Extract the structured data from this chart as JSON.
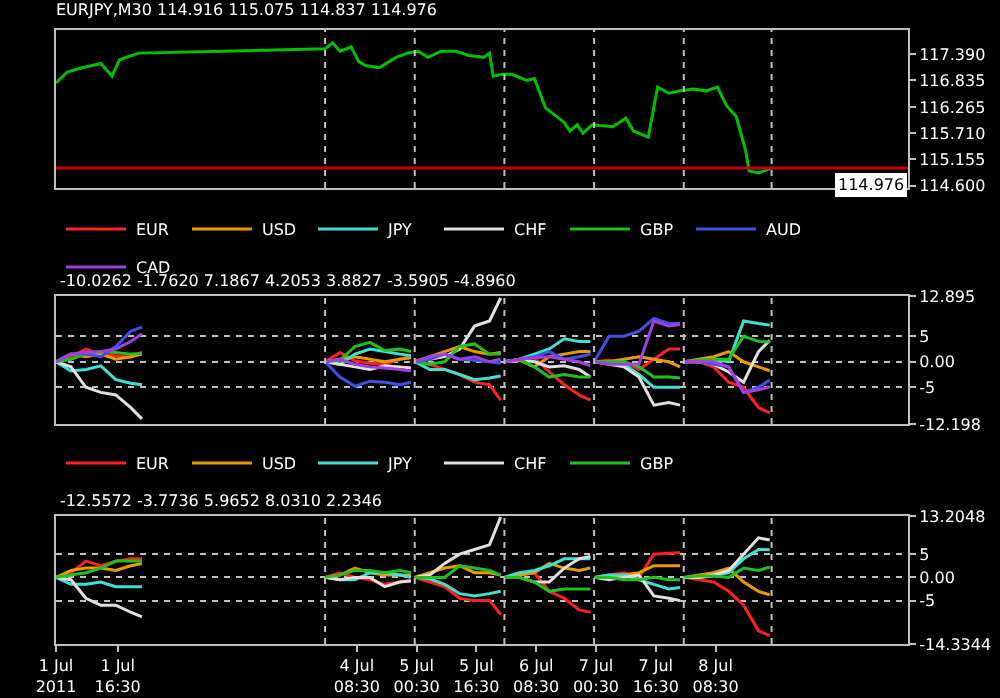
{
  "chart_data": [
    {
      "type": "line",
      "title": "EURJPY,M30 114.916 115.075 114.837 114.976",
      "tick_labels": "y",
      "grid": false,
      "legend": false,
      "x": [
        "2011-07-01T00:00",
        "2011-07-01T03:00",
        "2011-07-01T07:00",
        "2011-07-01T12:00",
        "2011-07-01T15:00",
        "2011-07-01T17:00",
        "2011-07-01T22:00",
        "2011-07-04T00:00",
        "2011-07-04T02:00",
        "2011-07-04T04:00",
        "2011-07-04T07:00",
        "2011-07-04T09:00",
        "2011-07-04T11:00",
        "2011-07-04T14:30",
        "2011-07-04T19:00",
        "2011-07-04T22:00",
        "2011-07-05T01:00",
        "2011-07-05T03:30",
        "2011-07-05T07:00",
        "2011-07-05T11:00",
        "2011-07-05T14:30",
        "2011-07-05T18:30",
        "2011-07-05T20:00",
        "2011-07-05T21:00",
        "2011-07-05T23:30",
        "2011-07-06T02:00",
        "2011-07-06T06:00",
        "2011-07-06T08:00",
        "2011-07-06T11:00",
        "2011-07-06T16:00",
        "2011-07-06T17:30",
        "2011-07-06T19:30",
        "2011-07-06T21:00",
        "2011-07-06T23:30",
        "2011-07-07T05:00",
        "2011-07-07T08:30",
        "2011-07-07T10:30",
        "2011-07-07T14:30",
        "2011-07-07T17:00",
        "2011-07-07T20:00",
        "2011-07-07T23:00",
        "2011-07-08T02:30",
        "2011-07-08T06:00",
        "2011-07-08T09:00",
        "2011-07-08T11:30",
        "2011-07-08T14:00",
        "2011-07-08T16:30",
        "2011-07-08T17:30",
        "2011-07-08T20:00",
        "2011-07-08T23:30"
      ],
      "series": [
        {
          "color": "#00c000",
          "values": [
            116.78,
            117.01,
            117.1,
            117.19,
            116.92,
            117.27,
            117.41,
            117.5,
            117.63,
            117.45,
            117.54,
            117.23,
            117.14,
            117.1,
            117.32,
            117.41,
            117.45,
            117.32,
            117.45,
            117.45,
            117.36,
            117.32,
            117.41,
            116.92,
            116.96,
            116.96,
            116.83,
            116.87,
            116.25,
            115.94,
            115.76,
            115.89,
            115.71,
            115.89,
            115.85,
            116.03,
            115.76,
            115.63,
            116.69,
            116.56,
            116.61,
            116.65,
            116.61,
            116.69,
            116.29,
            116.07,
            115.36,
            114.91,
            114.87,
            114.976
          ]
        }
      ],
      "xlim": [
        "2011-07-01T00:00",
        "2011-07-10T12:00"
      ],
      "ylim": [
        114.55,
        117.9
      ],
      "yticks": [
        {
          "value": 117.39,
          "label": "117.390"
        },
        {
          "value": 116.835,
          "label": "116.835"
        },
        {
          "value": 116.265,
          "label": "116.265"
        },
        {
          "value": 115.71,
          "label": "115.710"
        },
        {
          "value": 115.155,
          "label": "115.155"
        },
        {
          "value": 114.6,
          "label": "114.600"
        }
      ],
      "ref_lines": [
        {
          "axis": "y",
          "value": 114.976,
          "label": "114.976",
          "color": "#c00000",
          "line_style": "solid"
        },
        {
          "axis": "x",
          "value": "2011-07-04T00:00",
          "color": "#c0c0c0",
          "line_style": "dotted"
        },
        {
          "axis": "x",
          "value": "2011-07-05T00:00",
          "color": "#c0c0c0",
          "line_style": "dotted"
        },
        {
          "axis": "x",
          "value": "2011-07-06T00:00",
          "color": "#c0c0c0",
          "line_style": "dotted"
        },
        {
          "axis": "x",
          "value": "2011-07-07T00:00",
          "color": "#c0c0c0",
          "line_style": "dotted"
        },
        {
          "axis": "x",
          "value": "2011-07-08T00:00",
          "color": "#c0c0c0",
          "line_style": "dotted"
        },
        {
          "axis": "x",
          "value": "2011-07-08T23:30",
          "color": "#c0c0c0",
          "line_style": "dotted"
        }
      ]
    },
    {
      "type": "line",
      "tick_labels": "y",
      "grid": "y",
      "legend": "top left",
      "annotations": [
        "-10.0262 -1.7620 7.1867 4.2053 3.8827 -3.5905 -4.8960"
      ],
      "x": [
        "2011-07-01T00:00",
        "2011-07-01T04:00",
        "2011-07-01T08:00",
        "2011-07-01T12:00",
        "2011-07-01T16:00",
        "2011-07-01T20:00",
        "2011-07-01T23:00",
        "2011-07-01T23:30",
        "2011-07-04T00:00",
        "2011-07-04T04:00",
        "2011-07-04T08:00",
        "2011-07-04T12:00",
        "2011-07-04T16:00",
        "2011-07-04T20:00",
        "2011-07-04T23:00",
        "2011-07-04T23:30",
        "2011-07-05T00:00",
        "2011-07-05T04:00",
        "2011-07-05T08:00",
        "2011-07-05T12:00",
        "2011-07-05T16:00",
        "2011-07-05T20:00",
        "2011-07-05T23:00",
        "2011-07-05T23:30",
        "2011-07-06T00:00",
        "2011-07-06T04:00",
        "2011-07-06T08:00",
        "2011-07-06T12:00",
        "2011-07-06T16:00",
        "2011-07-06T20:00",
        "2011-07-06T23:00",
        "2011-07-06T23:30",
        "2011-07-07T00:00",
        "2011-07-07T04:00",
        "2011-07-07T08:00",
        "2011-07-07T12:00",
        "2011-07-07T16:00",
        "2011-07-07T20:00",
        "2011-07-07T23:00",
        "2011-07-07T23:30",
        "2011-07-08T00:00",
        "2011-07-08T04:00",
        "2011-07-08T08:00",
        "2011-07-08T12:00",
        "2011-07-08T16:00",
        "2011-07-08T20:00",
        "2011-07-08T23:00"
      ],
      "series": [
        {
          "name": "EUR",
          "color": "#ff2020",
          "values": [
            0,
            1,
            2.5,
            1.5,
            1.2,
            0.9,
            1.9,
            null,
            0,
            1.8,
            0.2,
            -0.3,
            -0.5,
            0.5,
            1,
            null,
            0,
            -0.5,
            -1.5,
            -2.5,
            -4,
            -4.5,
            -7.5,
            null,
            0,
            0.5,
            0.8,
            -2,
            -4.5,
            -6.5,
            -7.5,
            null,
            0,
            0.3,
            0,
            -1.5,
            0.5,
            2.5,
            2.5,
            null,
            0,
            0,
            -1,
            -4,
            -5,
            -9,
            -10.0262
          ]
        },
        {
          "name": "USD",
          "color": "#e69b00",
          "values": [
            0,
            1.5,
            1,
            1.5,
            0.5,
            1,
            1.5,
            null,
            0,
            0.5,
            1,
            0.5,
            0,
            0.5,
            0.8,
            null,
            0,
            1,
            2,
            3,
            2,
            1.5,
            1.8,
            null,
            0,
            0.3,
            -1,
            1,
            1.5,
            2,
            2,
            null,
            0,
            0,
            0.5,
            1,
            0.5,
            0,
            -1,
            null,
            0,
            0.5,
            1,
            2,
            0,
            -1,
            -1.762
          ]
        },
        {
          "name": "JPY",
          "color": "#40e0d0",
          "values": [
            0,
            -1.8,
            -1.5,
            -0.8,
            -3.5,
            -4.2,
            -4.5,
            null,
            0,
            -0.5,
            1.5,
            2.5,
            2,
            1.5,
            1.2,
            null,
            0,
            -1.5,
            -1.5,
            -2.5,
            -3.5,
            -3.2,
            -2.8,
            null,
            0,
            0.5,
            1.5,
            2.5,
            4.5,
            4,
            4,
            null,
            0,
            -0.3,
            -0.5,
            -2.5,
            -5,
            -5,
            -5,
            null,
            0,
            0,
            0.5,
            0,
            8,
            7.5,
            7.1867
          ]
        },
        {
          "name": "CHF",
          "color": "#e0e0e0",
          "values": [
            0,
            -1,
            -5,
            -6,
            -6.5,
            -9,
            -11.2,
            null,
            0,
            -0.5,
            -1,
            -1.5,
            -0.8,
            -1,
            -1.2,
            null,
            0,
            0.5,
            1,
            2.5,
            7,
            8,
            12.5,
            null,
            0,
            0.5,
            0,
            -1,
            -0.8,
            -1.5,
            -3,
            null,
            0,
            -0.5,
            -1,
            -3,
            -8.5,
            -8,
            -8.5,
            null,
            0,
            0,
            -0.5,
            -2,
            -4,
            2,
            4.2053
          ]
        },
        {
          "name": "GBP",
          "color": "#20c020",
          "values": [
            0,
            0.5,
            1.5,
            2,
            1.8,
            1.5,
            1.6,
            null,
            0,
            0.3,
            3,
            3.8,
            2.2,
            2.5,
            2,
            null,
            0,
            -0.5,
            0,
            3,
            3.5,
            1.5,
            1.5,
            null,
            0,
            0.5,
            -1,
            -3,
            -2.5,
            -3,
            -3,
            null,
            0,
            0,
            0,
            -1,
            -3,
            -3,
            -3.2,
            null,
            0,
            0.3,
            0.5,
            0.5,
            5,
            4,
            3.8827
          ]
        },
        {
          "name": "AUD",
          "color": "#4050e0",
          "values": [
            0,
            1.5,
            1.5,
            1,
            3,
            6,
            6.8,
            null,
            0,
            -3,
            -4.8,
            -3.8,
            -4,
            -4.5,
            -4,
            null,
            0,
            0.5,
            1.5,
            0.5,
            0.3,
            0,
            -0.3,
            null,
            0,
            0.5,
            1,
            2,
            0.5,
            1,
            1.5,
            null,
            0,
            5,
            5,
            6,
            8.5,
            7.5,
            7.5,
            null,
            0,
            0,
            -0.5,
            -1,
            -6,
            -5,
            -3.5905
          ]
        },
        {
          "name": "CAD",
          "color": "#a040e0",
          "values": [
            0,
            1.5,
            1.8,
            2,
            2.5,
            4,
            5.5,
            null,
            0,
            0.5,
            -0.5,
            -1,
            -1.2,
            -1.5,
            -1.8,
            null,
            0,
            1,
            1.5,
            0.5,
            1,
            0,
            0.5,
            null,
            0,
            0.5,
            0.8,
            1,
            0.5,
            0,
            -0.8,
            null,
            0,
            -0.5,
            -0.5,
            -0.5,
            8,
            7,
            7.3,
            null,
            0,
            0,
            0,
            -1,
            -6,
            -5.5,
            -4.896
          ]
        }
      ],
      "xlim": [
        "2011-07-01T00:00",
        "2011-07-10T12:00"
      ],
      "ylim": [
        -12.198,
        12.895
      ],
      "yticks": [
        12.895,
        5,
        {
          "value": 0,
          "label": "0.00"
        },
        -5,
        -12.198
      ],
      "ref_lines": [
        {
          "axis": "x",
          "value": "2011-07-04T00:00",
          "color": "#c0c0c0",
          "line_style": "dotted"
        },
        {
          "axis": "x",
          "value": "2011-07-05T00:00",
          "color": "#c0c0c0",
          "line_style": "dotted"
        },
        {
          "axis": "x",
          "value": "2011-07-06T00:00",
          "color": "#c0c0c0",
          "line_style": "dotted"
        },
        {
          "axis": "x",
          "value": "2011-07-07T00:00",
          "color": "#c0c0c0",
          "line_style": "dotted"
        },
        {
          "axis": "x",
          "value": "2011-07-08T00:00",
          "color": "#c0c0c0",
          "line_style": "dotted"
        },
        {
          "axis": "x",
          "value": "2011-07-08T23:30",
          "color": "#c0c0c0",
          "line_style": "dotted"
        }
      ]
    },
    {
      "type": "line",
      "grid": "y",
      "legend": "top left",
      "annotations": [
        "-12.5572 -3.7736 5.9652 8.0310 2.2346"
      ],
      "x": [
        "2011-07-01T00:00",
        "2011-07-01T04:00",
        "2011-07-01T08:00",
        "2011-07-01T12:00",
        "2011-07-01T16:00",
        "2011-07-01T20:00",
        "2011-07-01T23:00",
        "2011-07-01T23:30",
        "2011-07-04T00:00",
        "2011-07-04T04:00",
        "2011-07-04T08:00",
        "2011-07-04T12:00",
        "2011-07-04T16:00",
        "2011-07-04T20:00",
        "2011-07-04T23:00",
        "2011-07-04T23:30",
        "2011-07-05T00:00",
        "2011-07-05T04:00",
        "2011-07-05T08:00",
        "2011-07-05T12:00",
        "2011-07-05T16:00",
        "2011-07-05T20:00",
        "2011-07-05T23:00",
        "2011-07-05T23:30",
        "2011-07-06T00:00",
        "2011-07-06T04:00",
        "2011-07-06T08:00",
        "2011-07-06T12:00",
        "2011-07-06T16:00",
        "2011-07-06T20:00",
        "2011-07-06T23:00",
        "2011-07-06T23:30",
        "2011-07-07T00:00",
        "2011-07-07T04:00",
        "2011-07-07T08:00",
        "2011-07-07T12:00",
        "2011-07-07T16:00",
        "2011-07-07T20:00",
        "2011-07-07T23:00",
        "2011-07-07T23:30",
        "2011-07-08T00:00",
        "2011-07-08T04:00",
        "2011-07-08T08:00",
        "2011-07-08T12:00",
        "2011-07-08T16:00",
        "2011-07-08T20:00",
        "2011-07-08T23:00"
      ],
      "series": [
        {
          "name": "EUR",
          "color": "#ff2020",
          "values": [
            0,
            1,
            3.5,
            2.5,
            3.5,
            4,
            4,
            null,
            0,
            1,
            0,
            -0.5,
            -1.5,
            -1,
            -0.5,
            null,
            0,
            -1,
            -2,
            -4.5,
            -5,
            -5,
            -8,
            null,
            0,
            0.5,
            1,
            -3,
            -4.5,
            -7,
            -7.5,
            null,
            0,
            0.5,
            1,
            0,
            5,
            5.2,
            5.3,
            null,
            0,
            -0.5,
            -1,
            -3,
            -6,
            -11.5,
            -12.5572
          ]
        },
        {
          "name": "USD",
          "color": "#e69b00",
          "values": [
            0,
            1.5,
            2,
            2,
            1.5,
            2.5,
            3,
            null,
            0,
            0.5,
            2,
            1,
            0.5,
            0.5,
            0.5,
            null,
            0,
            1,
            2,
            2.5,
            1,
            1,
            0.5,
            null,
            0,
            0.5,
            1,
            3,
            2,
            1.5,
            2,
            null,
            0,
            0,
            0.5,
            1,
            2.5,
            2.5,
            2.5,
            null,
            0,
            0.5,
            1,
            2,
            -1,
            -3,
            -3.7736
          ]
        },
        {
          "name": "JPY",
          "color": "#40e0d0",
          "values": [
            0,
            -1.5,
            -1.5,
            -1,
            -2,
            -2,
            -2,
            null,
            0,
            -0.5,
            -0.5,
            1,
            1,
            0.5,
            0,
            null,
            0,
            -0.3,
            -1.5,
            -3.5,
            -4,
            -3.5,
            -3,
            null,
            0,
            1,
            1.5,
            2.5,
            4,
            4,
            4,
            null,
            0,
            0.5,
            0.5,
            -0.5,
            -1.5,
            -2.5,
            -2.2,
            null,
            0,
            0,
            0.3,
            1,
            4,
            6,
            5.9652
          ]
        },
        {
          "name": "CHF",
          "color": "#e0e0e0",
          "values": [
            0,
            -0.5,
            -4.5,
            -6,
            -6,
            -7.5,
            -8.5,
            null,
            0,
            -0.5,
            0,
            0,
            -2,
            -1,
            -0.8,
            null,
            0,
            0.5,
            3,
            5,
            6,
            7,
            13,
            null,
            0,
            0,
            -1,
            -1,
            2,
            4,
            4.5,
            null,
            0,
            -0.5,
            0,
            0.5,
            -4,
            -4.5,
            -5,
            null,
            0,
            0,
            0.5,
            1.5,
            5,
            8.5,
            8.031
          ]
        },
        {
          "name": "GBP",
          "color": "#20c020",
          "values": [
            0,
            0.5,
            1,
            2,
            3.5,
            3.5,
            3.5,
            null,
            0,
            0.5,
            1.5,
            1.5,
            1,
            1.5,
            1,
            null,
            0,
            0,
            0,
            2.5,
            2,
            1.5,
            0.5,
            null,
            0,
            0,
            -1,
            -3,
            -2.5,
            -2.5,
            -2.5,
            null,
            0,
            0,
            -0.5,
            -0.5,
            0,
            -0.5,
            -0.5,
            null,
            0,
            0.3,
            0.3,
            0,
            2,
            1.5,
            2.2346
          ]
        }
      ],
      "xlim": [
        "2011-07-01T00:00",
        "2011-07-10T12:00"
      ],
      "xticks": [
        {
          "value": "2011-07-01T00:00",
          "label": "1 Jul 2011"
        },
        {
          "value": "2011-07-01T16:30",
          "label": "1 Jul 16:30"
        },
        {
          "value": "2011-07-04T08:30",
          "label": "4 Jul 08:30"
        },
        {
          "value": "2011-07-05T00:30",
          "label": "5 Jul 00:30"
        },
        {
          "value": "2011-07-05T16:30",
          "label": "5 Jul 16:30"
        },
        {
          "value": "2011-07-06T08:30",
          "label": "6 Jul 08:30"
        },
        {
          "value": "2011-07-07T00:30",
          "label": "7 Jul 00:30"
        },
        {
          "value": "2011-07-07T16:30",
          "label": "7 Jul 16:30"
        },
        {
          "value": "2011-07-08T08:30",
          "label": "8 Jul 08:30"
        }
      ],
      "ylim": [
        -14.3344,
        13.2048
      ],
      "yticks": [
        13.2048,
        5,
        {
          "value": 0,
          "label": "0.00"
        },
        -5,
        -14.3344
      ],
      "ref_lines": [
        {
          "axis": "x",
          "value": "2011-07-04T00:00",
          "color": "#c0c0c0",
          "line_style": "dotted"
        },
        {
          "axis": "x",
          "value": "2011-07-05T00:00",
          "color": "#c0c0c0",
          "line_style": "dotted"
        },
        {
          "axis": "x",
          "value": "2011-07-06T00:00",
          "color": "#c0c0c0",
          "line_style": "dotted"
        },
        {
          "axis": "x",
          "value": "2011-07-07T00:00",
          "color": "#c0c0c0",
          "line_style": "dotted"
        },
        {
          "axis": "x",
          "value": "2011-07-08T00:00",
          "color": "#c0c0c0",
          "line_style": "dotted"
        },
        {
          "axis": "x",
          "value": "2011-07-08T23:30",
          "color": "#c0c0c0",
          "line_style": "dotted"
        }
      ]
    }
  ]
}
